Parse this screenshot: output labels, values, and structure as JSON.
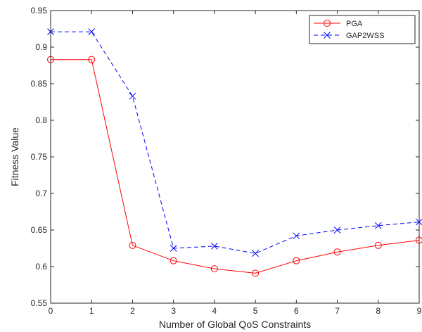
{
  "chart_data": {
    "type": "line",
    "title": "",
    "xlabel": "Number of Global QoS Constraints",
    "ylabel": "Fitness Value",
    "xlim": [
      0,
      9
    ],
    "ylim": [
      0.55,
      0.95
    ],
    "x": [
      0,
      1,
      2,
      3,
      4,
      5,
      6,
      7,
      8,
      9
    ],
    "x_ticks": [
      "0",
      "1",
      "2",
      "3",
      "4",
      "5",
      "6",
      "7",
      "8",
      "9"
    ],
    "y_ticks": [
      "0.55",
      "0.6",
      "0.65",
      "0.7",
      "0.75",
      "0.8",
      "0.85",
      "0.9",
      "0.95"
    ],
    "y_tick_values": [
      0.55,
      0.6,
      0.65,
      0.7,
      0.75,
      0.8,
      0.85,
      0.9,
      0.95
    ],
    "grid": false,
    "legend_position": "top-right",
    "series": [
      {
        "name": "PGA",
        "values": [
          0.883,
          0.883,
          0.629,
          0.608,
          0.597,
          0.591,
          0.608,
          0.62,
          0.629,
          0.636
        ],
        "color": "#ff0000",
        "marker": "circle",
        "line_style": "solid"
      },
      {
        "name": "GAP2WSS",
        "values": [
          0.921,
          0.921,
          0.833,
          0.625,
          0.628,
          0.618,
          0.642,
          0.65,
          0.656,
          0.661
        ],
        "color": "#0000ff",
        "marker": "x",
        "line_style": "dashed"
      }
    ]
  }
}
